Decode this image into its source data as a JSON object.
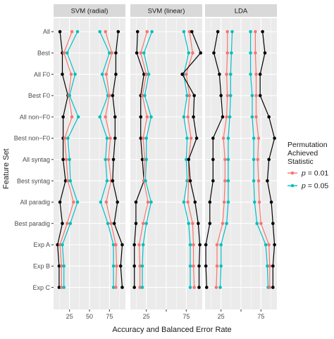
{
  "chart_data": {
    "type": "line",
    "orientation": "horizontal",
    "xlabel": "Accuracy and Balanced Error Rate",
    "ylabel": "Feature Set",
    "xticks": [
      25,
      50,
      75
    ],
    "xticks_drawn_per_panel": [
      [
        "25",
        "50",
        "75"
      ],
      [
        "25",
        "75"
      ],
      [
        "25",
        "75"
      ]
    ],
    "xlim": [
      5,
      95
    ],
    "grid": true,
    "legend_position": "right",
    "legend": {
      "title_lines": [
        "Permutation",
        "Achieved",
        "Statistic"
      ],
      "entries": [
        {
          "label": "p = 0.01",
          "color": "#F8766D"
        },
        {
          "label": "p = 0.05",
          "color": "#00BFC4"
        }
      ]
    },
    "colors": {
      "observed": "#000000",
      "p01": "#F8766D",
      "p05": "#00BFC4",
      "panel_bg": "#EBEBEB",
      "strip_bg": "#D9D9D9",
      "grid": "#FFFFFF"
    },
    "categories": [
      "All",
      "Best",
      "All F0",
      "Best F0",
      "All non−F0",
      "Best non−F0",
      "All syntag",
      "Best syntag",
      "All paradig",
      "Best paradig",
      "Exp A",
      "Exp B",
      "Exp C"
    ],
    "panels": [
      {
        "title": "SVM (radial)",
        "series": [
          {
            "role": "observed",
            "values": [
              13,
              16,
              16,
              23,
              17,
              17,
              17,
              20,
              13,
              16,
              10,
              12,
              12
            ]
          },
          {
            "role": "p01",
            "values": [
              28,
              18,
              27,
              24,
              28,
              19,
              21,
              23,
              30,
              22,
              13,
              15,
              15
            ]
          },
          {
            "role": "p05",
            "values": [
              35,
              22,
              32,
              25,
              36,
              23,
              25,
              26,
              35,
              26,
              16,
              18,
              18
            ]
          },
          {
            "role": "p05",
            "values": [
              63,
              75,
              66,
              73,
              63,
              72,
              70,
              72,
              64,
              73,
              80,
              80,
              80
            ]
          },
          {
            "role": "p01",
            "values": [
              70,
              78,
              71,
              75,
              70,
              76,
              74,
              77,
              71,
              77,
              83,
              84,
              83
            ]
          },
          {
            "role": "observed",
            "values": [
              86,
              83,
              83,
              79,
              82,
              82,
              80,
              79,
              85,
              81,
              91,
              89,
              91
            ]
          }
        ]
      },
      {
        "title": "SVM (linear)",
        "series": [
          {
            "role": "observed",
            "values": [
              14,
              13,
              22,
              18,
              18,
              18,
              20,
              22,
              12,
              12,
              10,
              10,
              10
            ]
          },
          {
            "role": "p01",
            "values": [
              26,
              18,
              25,
              20,
              26,
              21,
              23,
              22,
              27,
              21,
              16,
              17,
              17
            ]
          },
          {
            "role": "p05",
            "values": [
              32,
              22,
              28,
              23,
              31,
              25,
              25,
              24,
              31,
              25,
              21,
              20,
              20
            ]
          },
          {
            "role": "p05",
            "values": [
              72,
              78,
              72,
              76,
              72,
              76,
              75,
              76,
              72,
              78,
              80,
              80,
              80
            ]
          },
          {
            "role": "p01",
            "values": [
              79,
              83,
              75,
              79,
              77,
              81,
              78,
              78,
              77,
              83,
              84,
              84,
              85
            ]
          },
          {
            "role": "observed",
            "values": [
              82,
              93,
              70,
              85,
              84,
              88,
              78,
              80,
              86,
              90,
              92,
              91,
              91
            ]
          }
        ]
      },
      {
        "title": "LDA",
        "series": [
          {
            "role": "observed",
            "values": [
              21,
              16,
              23,
              25,
              27,
              15,
              15,
              15,
              11,
              11,
              6,
              6,
              7
            ]
          },
          {
            "role": "p01",
            "values": [
              33,
              33,
              32,
              33,
              32,
              28,
              30,
              30,
              29,
              27,
              20,
              20,
              19
            ]
          },
          {
            "role": "p05",
            "values": [
              39,
              38,
              37,
              37,
              36,
              34,
              34,
              34,
              34,
              32,
              25,
              25,
              24
            ]
          },
          {
            "role": "p05",
            "values": [
              62,
              62,
              62,
              64,
              64,
              66,
              66,
              66,
              67,
              70,
              81,
              83,
              84
            ]
          },
          {
            "role": "p01",
            "values": [
              68,
              68,
              69,
              69,
              69,
              72,
              71,
              72,
              73,
              75,
              85,
              86,
              86
            ]
          },
          {
            "role": "observed",
            "values": [
              77,
              80,
              74,
              74,
              85,
              92,
              85,
              83,
              88,
              90,
              92,
              90,
              90
            ]
          }
        ]
      }
    ]
  }
}
